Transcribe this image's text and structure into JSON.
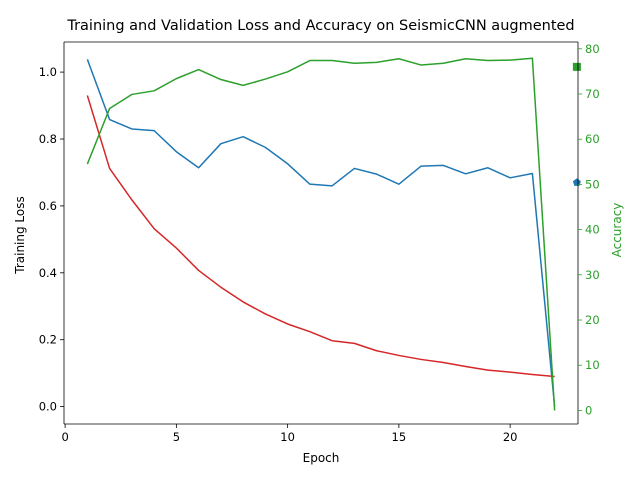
{
  "chart_data": {
    "type": "line",
    "title": "Training and Validation Loss and Accuracy on SeismicCNN augmented",
    "xlabel": "Epoch",
    "ylabel_left": "Training Loss",
    "ylabel_right": "Accuracy",
    "xlim": [
      -0.05,
      23.05
    ],
    "ylim_left": [
      -0.052,
      1.09
    ],
    "ylim_right": [
      -3.0,
      81.5
    ],
    "x_ticks": [
      0,
      5,
      10,
      15,
      20
    ],
    "y_ticks_left": [
      "0.0",
      "0.2",
      "0.4",
      "0.6",
      "0.8",
      "1.0"
    ],
    "y_ticks_right": [
      "0",
      "10",
      "20",
      "30",
      "40",
      "50",
      "60",
      "70",
      "80"
    ],
    "grid": false,
    "colors": {
      "training_loss": "#d62728",
      "validation_loss": "#1f77b4",
      "accuracy": "#2ca02c"
    },
    "x": [
      1,
      2,
      3,
      4,
      5,
      6,
      7,
      8,
      9,
      10,
      11,
      12,
      13,
      14,
      15,
      16,
      17,
      18,
      19,
      20,
      21,
      22
    ],
    "series": [
      {
        "axis": "left",
        "color": "#d62728",
        "values": [
          0.93,
          0.712,
          0.618,
          0.532,
          0.474,
          0.407,
          0.357,
          0.313,
          0.277,
          0.247,
          0.224,
          0.197,
          0.189,
          0.167,
          0.153,
          0.141,
          0.132,
          0.12,
          0.109,
          0.103,
          0.096,
          0.09
        ]
      },
      {
        "axis": "left",
        "color": "#1f77b4",
        "values": [
          1.038,
          0.858,
          0.83,
          0.825,
          0.762,
          0.714,
          0.786,
          0.807,
          0.775,
          0.726,
          0.665,
          0.66,
          0.712,
          0.695,
          0.665,
          0.719,
          0.721,
          0.696,
          0.714,
          0.684,
          0.697,
          0.0
        ]
      },
      {
        "axis": "right",
        "color": "#2ca02c",
        "values": [
          54.5,
          66.8,
          69.9,
          70.7,
          73.4,
          75.4,
          73.2,
          71.9,
          73.3,
          74.9,
          77.4,
          77.4,
          76.8,
          77.0,
          77.8,
          76.4,
          76.8,
          77.8,
          77.4,
          77.5,
          77.9,
          0.0
        ]
      }
    ],
    "markers": [
      {
        "x": 23,
        "y": 0.67,
        "axis": "left",
        "shape": "pentagon",
        "color": "#1f77b4"
      },
      {
        "x": 23,
        "y": 76.0,
        "axis": "right",
        "shape": "square",
        "color": "#2ca02c"
      }
    ]
  }
}
